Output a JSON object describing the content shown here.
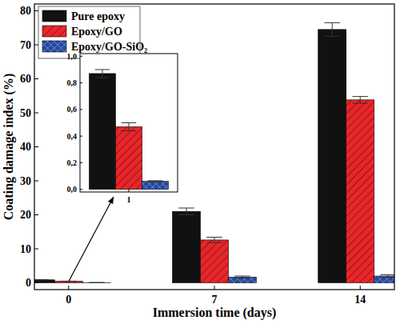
{
  "chart_data": [
    {
      "type": "bar",
      "xlabel": "Immersion time (days)",
      "ylabel": "Coating damage index (%)",
      "categories": [
        "0",
        "7",
        "14"
      ],
      "series": [
        {
          "name": "Pure epoxy",
          "color": "#111111",
          "values": [
            0.87,
            21.0,
            74.5
          ],
          "errors": [
            0.04,
            1.0,
            2.0
          ]
        },
        {
          "name": "Epoxy/GO",
          "color": "#e8262a",
          "values": [
            0.47,
            12.6,
            53.8
          ],
          "errors": [
            0.03,
            0.8,
            1.0
          ]
        },
        {
          "name": "Epoxy/GO-SiO₂",
          "color": "#2448a0",
          "values": [
            0.06,
            1.7,
            2.0
          ],
          "errors": [
            0.01,
            0.3,
            0.4
          ]
        }
      ],
      "ylim": [
        -2,
        82
      ],
      "yticks": [
        0,
        10,
        20,
        30,
        40,
        50,
        60,
        70,
        80
      ],
      "legend": "upper left"
    },
    {
      "type": "bar",
      "categories": [
        "1"
      ],
      "series": [
        {
          "color": "#111111",
          "values": [
            0.87
          ],
          "errors": [
            0.03
          ]
        },
        {
          "color": "#e8262a",
          "values": [
            0.47
          ],
          "errors": [
            0.03
          ]
        },
        {
          "color": "#2448a0",
          "values": [
            0.06
          ],
          "errors": [
            0.005
          ]
        }
      ],
      "ylim": [
        -0.02,
        1.02
      ],
      "yticks": [
        {
          "value": 0,
          "label": "0,0"
        },
        {
          "value": 0.2,
          "label": "0,2"
        },
        {
          "value": 0.4,
          "label": "0,4"
        },
        {
          "value": 0.6,
          "label": "0,6"
        },
        {
          "value": 0.8,
          "label": "0,8"
        },
        {
          "value": 1.0,
          "label": "1,0"
        }
      ]
    }
  ]
}
